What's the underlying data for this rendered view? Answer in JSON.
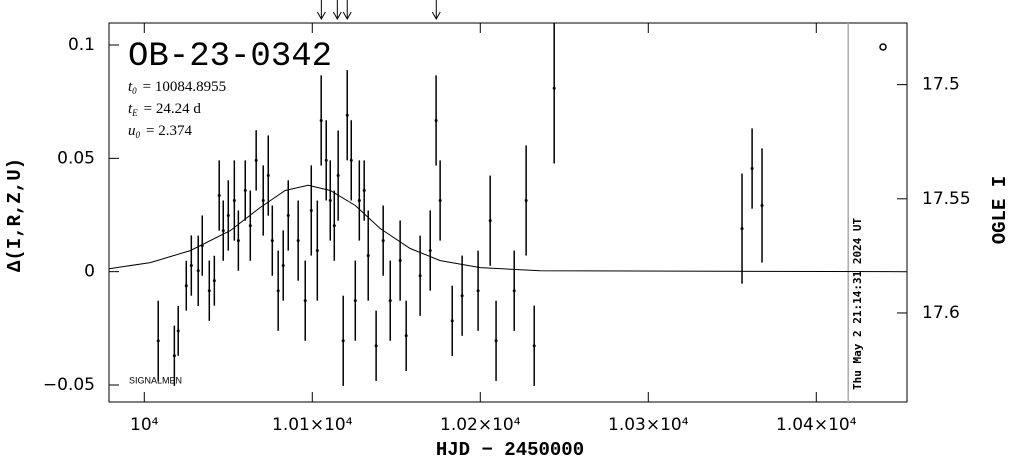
{
  "chart_data": {
    "type": "scatter",
    "title": "OB-23-0342",
    "params": [
      {
        "symbol": "t",
        "sub": "0",
        "text": "= 10084.8955"
      },
      {
        "symbol": "t",
        "sub": "E",
        "text": "= 24.24 d"
      },
      {
        "symbol": "u",
        "sub": "0",
        "text": "= 2.374"
      }
    ],
    "annotation": "SIGNALMEN",
    "x_label": "HJD − 2450000",
    "y_label": "Δ(I,R,Z,U)",
    "y2_label": "OGLE I",
    "timestamp": "Thu May  2 21:14:31 2024 UT",
    "timestamp_x": 10419,
    "arrows_x": [
      10105.4,
      10114.9,
      10120.8,
      10173.8
    ],
    "xlim": [
      9979,
      10454
    ],
    "ylim": [
      -0.0575,
      0.1097
    ],
    "y2lim": [
      17.639,
      17.473
    ],
    "xticks": [
      {
        "value": 10000,
        "label": "10⁴"
      },
      {
        "value": 10100,
        "label": "1.01×10⁴"
      },
      {
        "value": 10200,
        "label": "1.02×10⁴"
      },
      {
        "value": 10300,
        "label": "1.03×10⁴"
      },
      {
        "value": 10400,
        "label": "1.04×10⁴"
      }
    ],
    "yticks": [
      {
        "value": -0.05,
        "label": "−0.05"
      },
      0,
      0.05,
      0.1
    ],
    "y2ticks": [
      17.5,
      17.55,
      17.6
    ],
    "color": "#000000",
    "model": {
      "color": "#000000",
      "x": [
        9979.2,
        10003.6,
        10027.4,
        10051.2,
        10069.0,
        10083.9,
        10097.6,
        10110.7,
        10125.6,
        10140.5,
        10158.3,
        10176.2,
        10200.0,
        10235.7,
        10454.2
      ],
      "values": [
        0.0013,
        0.004,
        0.0093,
        0.0181,
        0.0283,
        0.0358,
        0.0381,
        0.0358,
        0.0292,
        0.019,
        0.0102,
        0.0049,
        0.0018,
        0.0004,
        0
      ]
    },
    "x": [
      10008.3,
      10017.9,
      10020.2,
      10025.0,
      10028.0,
      10032.1,
      10034.5,
      10038.7,
      10041.7,
      10044.6,
      10047.0,
      10050.0,
      10053.6,
      10056.0,
      10060.1,
      10063.1,
      10066.6,
      10070.8,
      10073.8,
      10076.2,
      10079.7,
      10082.7,
      10085.7,
      10091.6,
      10095.8,
      10099.4,
      10103.0,
      10105.3,
      10108.3,
      10110.7,
      10113.1,
      10115.4,
      10118.4,
      10120.8,
      10123.2,
      10125.6,
      10128.0,
      10130.9,
      10133.3,
      10138.0,
      10142.2,
      10146.4,
      10152.3,
      10155.9,
      10164.2,
      10170.2,
      10173.7,
      10176.1,
      10183.3,
      10189.2,
      10198.7,
      10205.9,
      10209.4,
      10220.2,
      10227.3,
      10232.1,
      10244.0,
      10355.8,
      10361.8,
      10367.7
    ],
    "values": [
      -0.0305,
      -0.0371,
      -0.0261,
      -0.0062,
      0.0027,
      0.0004,
      0.0115,
      -0.0084,
      -0.004,
      0.0336,
      0.0181,
      0.0248,
      0.0314,
      0.0137,
      0.0358,
      0.0203,
      0.0491,
      0.0314,
      0.0424,
      0.0137,
      -0.0084,
      0.0027,
      0.0248,
      0.0137,
      -0.0128,
      0.027,
      0.0093,
      0.0667,
      0.0491,
      0.0314,
      0.0203,
      0.0424,
      -0.0305,
      0.069,
      0.0491,
      -0.0128,
      0.0314,
      0.0358,
      0.0071,
      -0.0327,
      0.0137,
      -0.0128,
      0.0049,
      -0.0283,
      -0.0018,
      0.0093,
      0.0667,
      0.0314,
      -0.0217,
      -0.0106,
      -0.0084,
      0.0225,
      -0.0305,
      -0.0084,
      0.0314,
      -0.0327,
      0.0809,
      0.019,
      0.0455,
      0.0292
    ],
    "errors": [
      0.0177,
      0.0133,
      0.011,
      0.011,
      0.0133,
      0.0155,
      0.0133,
      0.0133,
      0.011,
      0.0155,
      0.0133,
      0.0155,
      0.0177,
      0.0133,
      0.0133,
      0.0155,
      0.0133,
      0.0155,
      0.0177,
      0.0155,
      0.0177,
      0.0155,
      0.0155,
      0.0177,
      0.0177,
      0.0199,
      0.0221,
      0.0199,
      0.0177,
      0.0177,
      0.0155,
      0.0199,
      0.0199,
      0.0199,
      0.0177,
      0.0177,
      0.0177,
      0.0133,
      0.0199,
      0.0155,
      0.0155,
      0.0177,
      0.0177,
      0.0155,
      0.0177,
      0.0177,
      0.0199,
      0.0177,
      0.0155,
      0.0177,
      0.0177,
      0.0199,
      0.0177,
      0.0177,
      0.0243,
      0.0177,
      0.0332,
      0.0243,
      0.0177,
      0.0252
    ]
  }
}
